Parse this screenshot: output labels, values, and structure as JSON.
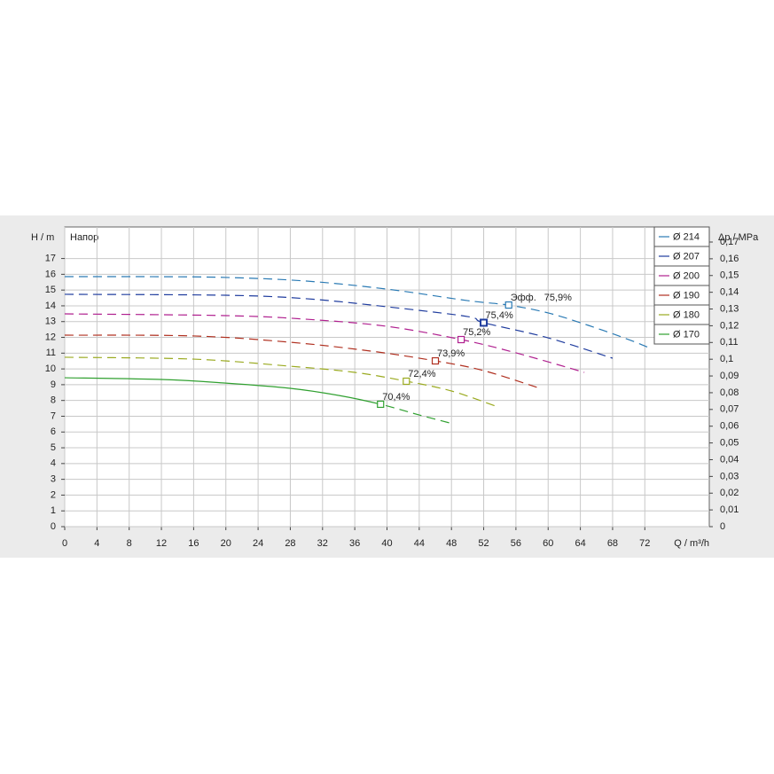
{
  "chart_data": {
    "type": "line",
    "y_label": "H / m",
    "subtitle": "Напор",
    "y2_label": "Δp / MPa",
    "x_label": "Q / m³/h",
    "efficiency_prefix": "Эфф.",
    "grid": true,
    "legend": "top-right",
    "xlim": [
      0,
      80
    ],
    "xticks": [
      0,
      4,
      8,
      12,
      16,
      20,
      24,
      28,
      32,
      36,
      40,
      44,
      48,
      52,
      56,
      60,
      64,
      68,
      72
    ],
    "ylim": [
      0,
      19
    ],
    "yticks": [
      0,
      1,
      2,
      3,
      4,
      5,
      6,
      7,
      8,
      9,
      10,
      11,
      12,
      13,
      14,
      15,
      16,
      17
    ],
    "y2lim": [
      0,
      0.179
    ],
    "y2ticks": [
      0,
      {
        "value": 0.01,
        "label": "0,01"
      },
      {
        "value": 0.02,
        "label": "0,02"
      },
      {
        "value": 0.03,
        "label": "0,03"
      },
      {
        "value": 0.04,
        "label": "0,04"
      },
      {
        "value": 0.05,
        "label": "0,05"
      },
      {
        "value": 0.06,
        "label": "0,06"
      },
      {
        "value": 0.07,
        "label": "0,07"
      },
      {
        "value": 0.08,
        "label": "0,08"
      },
      {
        "value": 0.09,
        "label": "0,09"
      },
      {
        "value": 0.1,
        "label": "0,1"
      },
      {
        "value": 0.11,
        "label": "0,11"
      },
      {
        "value": 0.12,
        "label": "0,12"
      },
      {
        "value": 0.13,
        "label": "0,13"
      },
      {
        "value": 0.14,
        "label": "0,14"
      },
      {
        "value": 0.15,
        "label": "0,15"
      },
      {
        "value": 0.16,
        "label": "0,16"
      },
      {
        "value": 0.17,
        "label": "0,17"
      }
    ],
    "series": [
      {
        "name": "Ø 214",
        "color": "#2a7ab4",
        "style": "dashed",
        "x": [
          0,
          10,
          20,
          30,
          40,
          50,
          55,
          60,
          65,
          70,
          72.5
        ],
        "values": [
          15.85,
          15.85,
          15.8,
          15.57,
          15.06,
          14.33,
          14.05,
          13.55,
          12.76,
          11.86,
          11.35
        ],
        "bep": {
          "x": 55.1,
          "y": 14.05
        },
        "efficiency": 75.9,
        "efficiency_label": "75,9%"
      },
      {
        "name": "Ø 207",
        "color": "#1f3c9e",
        "style": "dashed",
        "x": [
          0,
          20,
          30,
          40,
          50,
          52,
          60,
          68
        ],
        "values": [
          14.73,
          14.67,
          14.45,
          13.94,
          13.32,
          12.93,
          11.97,
          10.68
        ],
        "bep": {
          "x": 52,
          "y": 12.93
        },
        "efficiency": 75.4,
        "efficiency_label": "75,4%"
      },
      {
        "name": "Ø 200",
        "color": "#b0208f",
        "style": "dashed",
        "x": [
          0,
          20,
          30,
          40,
          49.2,
          56,
          64.5
        ],
        "values": [
          13.49,
          13.38,
          13.15,
          12.7,
          11.86,
          11.02,
          9.78
        ],
        "bep": {
          "x": 49.2,
          "y": 11.86
        },
        "efficiency": 75.2,
        "efficiency_label": "75,2%"
      },
      {
        "name": "Ø 190",
        "color": "#b03020",
        "style": "dashed",
        "x": [
          0,
          16,
          28,
          38,
          46,
          52,
          59
        ],
        "values": [
          12.14,
          12.09,
          11.69,
          11.13,
          10.51,
          9.89,
          8.77
        ],
        "bep": {
          "x": 46,
          "y": 10.51
        },
        "efficiency": 73.9,
        "efficiency_label": "73,9%"
      },
      {
        "name": "Ø 180",
        "color": "#9aaa20",
        "style": "dashed",
        "x": [
          0,
          16,
          28,
          36,
          42.4,
          48,
          53.5
        ],
        "values": [
          10.74,
          10.62,
          10.17,
          9.78,
          9.22,
          8.6,
          7.64
        ],
        "bep": {
          "x": 42.4,
          "y": 9.22
        },
        "efficiency": 72.4,
        "efficiency_label": "72,4%"
      },
      {
        "name": "Ø 170",
        "color": "#30a030",
        "style": "solid",
        "x": [
          0,
          12,
          20,
          28,
          34,
          39.2,
          44,
          48.2
        ],
        "values": [
          9.44,
          9.33,
          9.1,
          8.77,
          8.32,
          7.76,
          7.08,
          6.52
        ],
        "bep": {
          "x": 39.2,
          "y": 7.76
        },
        "efficiency": 70.4,
        "efficiency_label": "70,4%"
      }
    ]
  }
}
